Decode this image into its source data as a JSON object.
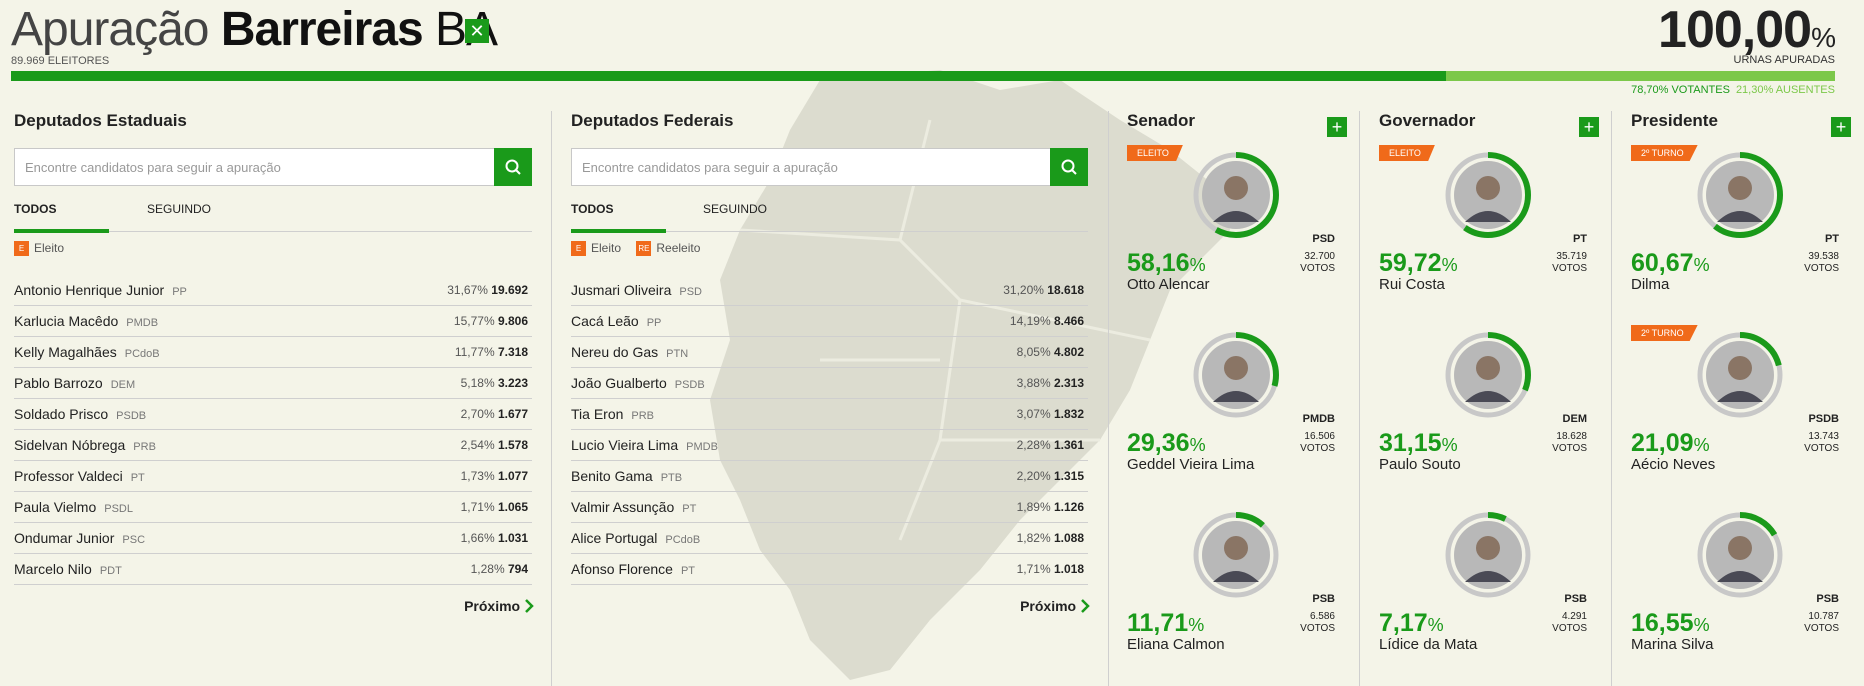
{
  "header": {
    "title_prefix": "Apuração",
    "city": "Barreiras",
    "state": "BA",
    "voters": "89.969 ELEITORES",
    "pct_value": "100,00",
    "pct_sign": "%",
    "urnas_label": "URNAS APURADAS",
    "turnout_fraction": 0.787,
    "votantes": "78,70% VOTANTES",
    "ausentes": "21,30% AUSENTES"
  },
  "colors": {
    "accent": "#1a9a1a",
    "light_green": "#7cc84a",
    "orange": "#f06a1a"
  },
  "estaduais": {
    "title": "Deputados Estaduais",
    "search_placeholder": "Encontre candidatos para seguir a apuração",
    "tab_all": "TODOS",
    "tab_following": "SEGUINDO",
    "legend_badge_e": "E",
    "legend_eleito": "Eleito",
    "next": "Próximo",
    "rows": [
      {
        "name": "Antonio Henrique Junior",
        "party": "PP",
        "pct": "31,67%",
        "votes": "19.692"
      },
      {
        "name": "Karlucia Macêdo",
        "party": "PMDB",
        "pct": "15,77%",
        "votes": "9.806"
      },
      {
        "name": "Kelly Magalhães",
        "party": "PCdoB",
        "pct": "11,77%",
        "votes": "7.318"
      },
      {
        "name": "Pablo Barrozo",
        "party": "DEM",
        "pct": "5,18%",
        "votes": "3.223"
      },
      {
        "name": "Soldado Prisco",
        "party": "PSDB",
        "pct": "2,70%",
        "votes": "1.677"
      },
      {
        "name": "Sidelvan Nóbrega",
        "party": "PRB",
        "pct": "2,54%",
        "votes": "1.578"
      },
      {
        "name": "Professor Valdeci",
        "party": "PT",
        "pct": "1,73%",
        "votes": "1.077"
      },
      {
        "name": "Paula Vielmo",
        "party": "PSDL",
        "pct": "1,71%",
        "votes": "1.065"
      },
      {
        "name": "Ondumar Junior",
        "party": "PSC",
        "pct": "1,66%",
        "votes": "1.031"
      },
      {
        "name": "Marcelo Nilo",
        "party": "PDT",
        "pct": "1,28%",
        "votes": "794"
      }
    ]
  },
  "federais": {
    "title": "Deputados Federais",
    "search_placeholder": "Encontre candidatos para seguir a apuração",
    "tab_all": "TODOS",
    "tab_following": "SEGUINDO",
    "legend_badge_e": "E",
    "legend_eleito": "Eleito",
    "legend_badge_re": "RE",
    "legend_reeleito": "Reeleito",
    "next": "Próximo",
    "rows": [
      {
        "name": "Jusmari Oliveira",
        "party": "PSD",
        "pct": "31,20%",
        "votes": "18.618"
      },
      {
        "name": "Cacá Leão",
        "party": "PP",
        "pct": "14,19%",
        "votes": "8.466"
      },
      {
        "name": "Nereu do Gas",
        "party": "PTN",
        "pct": "8,05%",
        "votes": "4.802"
      },
      {
        "name": "João Gualberto",
        "party": "PSDB",
        "pct": "3,88%",
        "votes": "2.313"
      },
      {
        "name": "Tia Eron",
        "party": "PRB",
        "pct": "3,07%",
        "votes": "1.832"
      },
      {
        "name": "Lucio Vieira Lima",
        "party": "PMDB",
        "pct": "2,28%",
        "votes": "1.361"
      },
      {
        "name": "Benito Gama",
        "party": "PTB",
        "pct": "2,20%",
        "votes": "1.315"
      },
      {
        "name": "Valmir Assunção",
        "party": "PT",
        "pct": "1,89%",
        "votes": "1.126"
      },
      {
        "name": "Alice Portugal",
        "party": "PCdoB",
        "pct": "1,82%",
        "votes": "1.088"
      },
      {
        "name": "Afonso Florence",
        "party": "PT",
        "pct": "1,71%",
        "votes": "1.018"
      }
    ]
  },
  "races": [
    {
      "title": "Senador",
      "candidates": [
        {
          "tag": "ELEITO",
          "party": "PSD",
          "votes": "32.700",
          "votes_label": "VOTOS",
          "pct_value": "58,16",
          "pct_sign": "%",
          "name": "Otto Alencar",
          "share": 0.5816
        },
        {
          "tag": "",
          "party": "PMDB",
          "votes": "16.506",
          "votes_label": "VOTOS",
          "pct_value": "29,36",
          "pct_sign": "%",
          "name": "Geddel Vieira Lima",
          "share": 0.2936
        },
        {
          "tag": "",
          "party": "PSB",
          "votes": "6.586",
          "votes_label": "VOTOS",
          "pct_value": "11,71",
          "pct_sign": "%",
          "name": "Eliana Calmon",
          "share": 0.1171
        }
      ]
    },
    {
      "title": "Governador",
      "candidates": [
        {
          "tag": "ELEITO",
          "party": "PT",
          "votes": "35.719",
          "votes_label": "VOTOS",
          "pct_value": "59,72",
          "pct_sign": "%",
          "name": "Rui Costa",
          "share": 0.5972
        },
        {
          "tag": "",
          "party": "DEM",
          "votes": "18.628",
          "votes_label": "VOTOS",
          "pct_value": "31,15",
          "pct_sign": "%",
          "name": "Paulo Souto",
          "share": 0.3115
        },
        {
          "tag": "",
          "party": "PSB",
          "votes": "4.291",
          "votes_label": "VOTOS",
          "pct_value": "7,17",
          "pct_sign": "%",
          "name": "Lídice da Mata",
          "share": 0.0717
        }
      ]
    },
    {
      "title": "Presidente",
      "candidates": [
        {
          "tag": "2º TURNO",
          "party": "PT",
          "votes": "39.538",
          "votes_label": "VOTOS",
          "pct_value": "60,67",
          "pct_sign": "%",
          "name": "Dilma",
          "share": 0.6067
        },
        {
          "tag": "2º TURNO",
          "party": "PSDB",
          "votes": "13.743",
          "votes_label": "VOTOS",
          "pct_value": "21,09",
          "pct_sign": "%",
          "name": "Aécio Neves",
          "share": 0.2109
        },
        {
          "tag": "",
          "party": "PSB",
          "votes": "10.787",
          "votes_label": "VOTOS",
          "pct_value": "16,55",
          "pct_sign": "%",
          "name": "Marina Silva",
          "share": 0.1655
        }
      ]
    }
  ]
}
